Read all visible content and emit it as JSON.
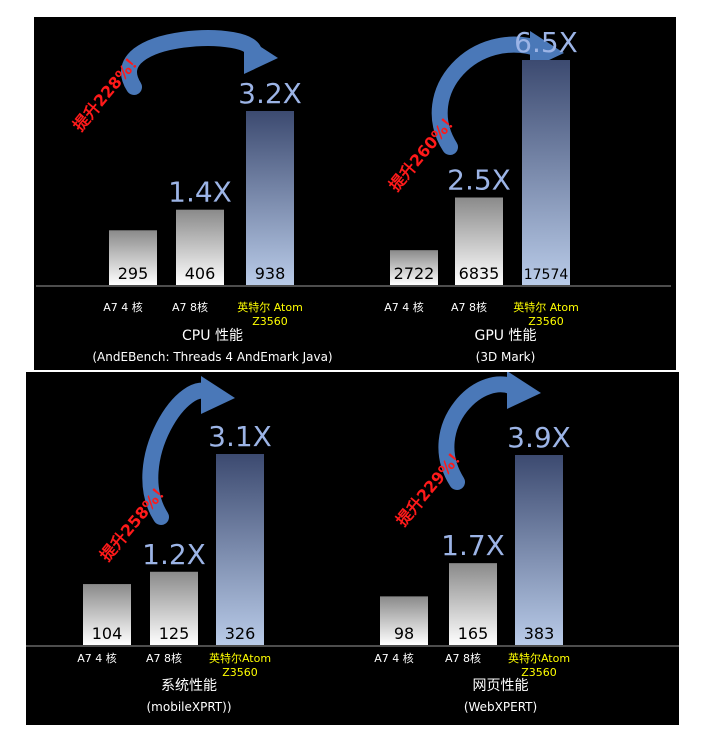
{
  "colors": {
    "background": "#000000",
    "text_white": "#ffffff",
    "text_yellow": "#ffff00",
    "multiplier": "#9cb4e6",
    "arrow": "#4a78b8",
    "arrow_text": "#ff1a1a",
    "bar_gray_top": "#8a8a8a",
    "bar_gray_bottom": "#ffffff",
    "bar_blue_top": "#3c4a70",
    "bar_blue_bottom": "#b9cbe8",
    "axis": "#9a9a9a"
  },
  "chart_data": [
    {
      "type": "bar",
      "title": "CPU 性能",
      "subtitle": "(AndEBench: Threads 4 AndEmark Java)",
      "categories": [
        "A7 4 核",
        "A7 8核",
        "英特尔 Atom Z3560"
      ],
      "category_lines": [
        [
          "A7 4 核"
        ],
        [
          "A7 8核"
        ],
        [
          "英特尔 Atom",
          "Z3560"
        ]
      ],
      "values": [
        295,
        406,
        938
      ],
      "value_labels": [
        "295",
        "406",
        "938"
      ],
      "multipliers": [
        "",
        "1.4X",
        "3.2X"
      ],
      "improvement_text": "提升228%！",
      "ylim": [
        0,
        938
      ]
    },
    {
      "type": "bar",
      "title": "GPU 性能",
      "subtitle": "(3D Mark)",
      "categories": [
        "A7 4 核",
        "A7 8核",
        "英特尔 Atom Z3560"
      ],
      "category_lines": [
        [
          "A7 4 核"
        ],
        [
          "A7 8核"
        ],
        [
          "英特尔 Atom",
          "Z3560"
        ]
      ],
      "values": [
        2722,
        6835,
        17574
      ],
      "value_labels": [
        "2722",
        "6835",
        "17574"
      ],
      "multipliers": [
        "",
        "2.5X",
        "6.5X"
      ],
      "improvement_text": "提升260%！",
      "ylim": [
        0,
        17574
      ]
    },
    {
      "type": "bar",
      "title": "系统性能",
      "subtitle": "(mobileXPRT))",
      "categories": [
        "A7 4 核",
        "A7 8核",
        "英特尔Atom Z3560"
      ],
      "category_lines": [
        [
          "A7 4 核"
        ],
        [
          "A7 8核"
        ],
        [
          "英特尔Atom",
          "Z3560"
        ]
      ],
      "values": [
        104,
        125,
        326
      ],
      "value_labels": [
        "104",
        "125",
        "326"
      ],
      "multipliers": [
        "",
        "1.2X",
        "3.1X"
      ],
      "improvement_text": "提升258%！",
      "ylim": [
        0,
        326
      ]
    },
    {
      "type": "bar",
      "title": "网页性能",
      "subtitle": "(WebXPERT)",
      "categories": [
        "A7 4 核",
        "A7 8核",
        "英特尔Atom Z3560"
      ],
      "category_lines": [
        [
          "A7 4 核"
        ],
        [
          "A7 8核"
        ],
        [
          "英特尔Atom",
          "Z3560"
        ]
      ],
      "values": [
        98,
        165,
        383
      ],
      "value_labels": [
        "98",
        "165",
        "383"
      ],
      "multipliers": [
        "",
        "1.7X",
        "3.9X"
      ],
      "improvement_text": "提升229%！",
      "ylim": [
        0,
        383
      ]
    }
  ]
}
